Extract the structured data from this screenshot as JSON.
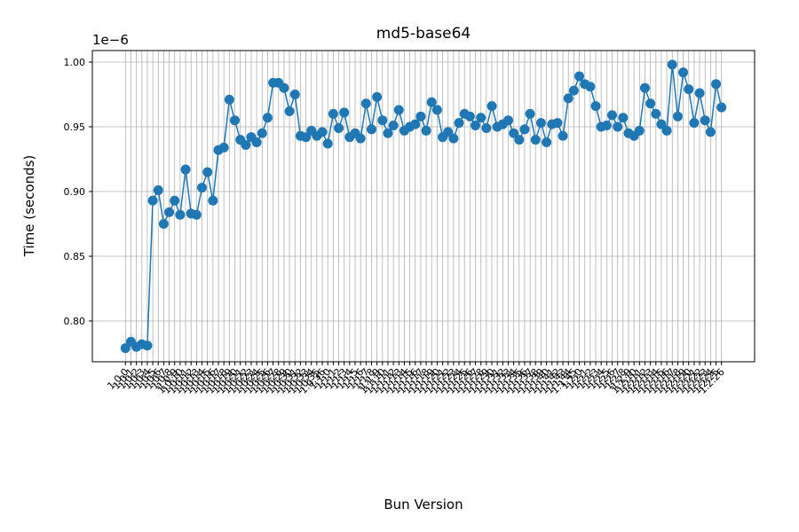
{
  "chart_data": {
    "type": "line",
    "title": "md5-base64",
    "x_label": "Bun Version",
    "y_label": "Time (seconds)",
    "y_offset_label": "1e−6",
    "categories": [
      "1.0.0",
      "1.0.1",
      "1.0.2",
      "1.0.3",
      "1.0.4",
      "1.0.5",
      "1.0.6",
      "1.0.7",
      "1.0.8",
      "1.0.9",
      "1.0.10",
      "1.0.11",
      "1.0.12",
      "1.0.13",
      "1.0.14",
      "1.0.15",
      "1.0.16",
      "1.0.17",
      "1.0.18",
      "1.0.19",
      "1.0.20",
      "1.0.21",
      "1.0.22",
      "1.0.23",
      "1.0.24",
      "1.0.25",
      "1.0.26",
      "1.0.27",
      "1.0.28",
      "1.0.29",
      "1.0.30",
      "1.0.31",
      "1.0.32",
      "1.0.33",
      "1.0.34",
      "1.0.35",
      "1.0.36",
      "1.1.0",
      "1.1.1",
      "1.1.2",
      "1.1.3",
      "1.1.4",
      "1.1.5",
      "1.1.6",
      "1.1.7",
      "1.1.8",
      "1.1.9",
      "1.1.10",
      "1.1.11",
      "1.1.12",
      "1.1.13",
      "1.1.14",
      "1.1.15",
      "1.1.16",
      "1.1.17",
      "1.1.18",
      "1.1.19",
      "1.1.20",
      "1.1.21",
      "1.1.22",
      "1.1.23",
      "1.1.24",
      "1.1.25",
      "1.1.26",
      "1.1.27",
      "1.1.28",
      "1.1.29",
      "1.1.30",
      "1.1.31",
      "1.1.32",
      "1.1.33",
      "1.1.34",
      "1.1.35",
      "1.1.36",
      "1.1.37",
      "1.1.38",
      "1.1.39",
      "1.1.40",
      "1.1.41",
      "1.1.42",
      "1.1.43",
      "1.1.44",
      "1.1.45",
      "1.2.0",
      "1.2.1",
      "1.2.2",
      "1.2.3",
      "1.2.4",
      "1.2.5",
      "1.2.6",
      "1.2.7",
      "1.2.8",
      "1.2.9",
      "1.2.10",
      "1.2.11",
      "1.2.12",
      "1.2.13",
      "1.2.14",
      "1.2.15",
      "1.2.16",
      "1.2.17",
      "1.2.18",
      "1.2.19",
      "1.2.20",
      "1.2.21",
      "1.2.22",
      "1.2.23",
      "1.2.24",
      "1.2.25",
      "1.2.26"
    ],
    "series": [
      {
        "name": "md5-base64",
        "color": "#1f77b4",
        "values": [
          0.779,
          0.784,
          0.78,
          0.782,
          0.781,
          0.893,
          0.901,
          0.875,
          0.884,
          0.893,
          0.882,
          0.917,
          0.883,
          0.882,
          0.903,
          0.915,
          0.893,
          0.932,
          0.934,
          0.971,
          0.955,
          0.94,
          0.936,
          0.942,
          0.938,
          0.945,
          0.957,
          0.984,
          0.984,
          0.98,
          0.962,
          0.975,
          0.943,
          0.942,
          0.947,
          0.943,
          0.946,
          0.937,
          0.96,
          0.949,
          0.961,
          0.942,
          0.945,
          0.941,
          0.968,
          0.948,
          0.973,
          0.955,
          0.945,
          0.951,
          0.963,
          0.947,
          0.95,
          0.952,
          0.958,
          0.947,
          0.969,
          0.963,
          0.942,
          0.946,
          0.941,
          0.953,
          0.96,
          0.958,
          0.951,
          0.957,
          0.949,
          0.966,
          0.95,
          0.952,
          0.955,
          0.945,
          0.94,
          0.948,
          0.96,
          0.94,
          0.953,
          0.938,
          0.952,
          0.953,
          0.943,
          0.972,
          0.978,
          0.989,
          0.983,
          0.981,
          0.966,
          0.95,
          0.951,
          0.959,
          0.95,
          0.957,
          0.945,
          0.943,
          0.947,
          0.98,
          0.968,
          0.96,
          0.952,
          0.947,
          0.998,
          0.958,
          0.992,
          0.979,
          0.953,
          0.976,
          0.955,
          0.946,
          0.983,
          0.965
        ]
      }
    ],
    "ylim": [
      0.7685,
      1.0089
    ],
    "yticks": [
      {
        "value": 0.8,
        "label": "0.80"
      },
      0.85,
      {
        "value": 0.9,
        "label": "0.90"
      },
      0.95,
      {
        "value": 1.0,
        "label": "1.00"
      }
    ],
    "grid": true
  }
}
